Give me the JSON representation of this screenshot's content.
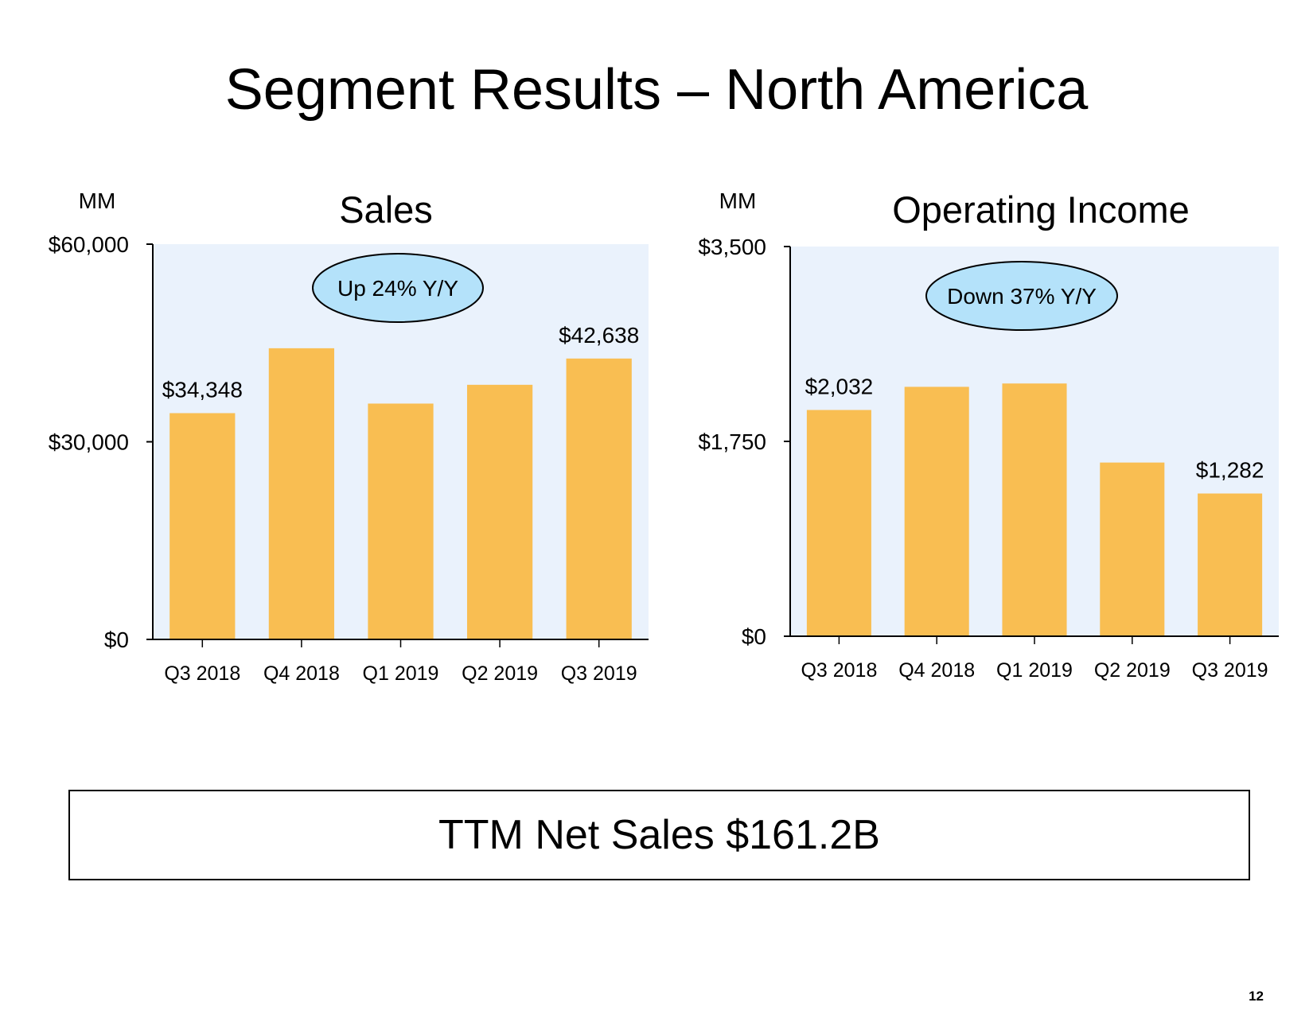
{
  "page": {
    "title": "Segment Results – North America",
    "ttm_text": "TTM Net Sales $161.2B",
    "page_number": "12"
  },
  "colors": {
    "bar": "#f9be52",
    "plot_bg": "#eaf2fc",
    "callout_fill": "#b4e2fa",
    "axis": "#000000"
  },
  "chart_data": [
    {
      "type": "bar",
      "title": "Sales",
      "unit_label": "MM",
      "categories": [
        "Q3 2018",
        "Q4 2018",
        "Q1 2019",
        "Q2 2019",
        "Q3 2019"
      ],
      "values": [
        34348,
        44200,
        35800,
        38650,
        42638
      ],
      "ylim": [
        0,
        60000
      ],
      "yticks": [
        0,
        30000,
        60000
      ],
      "ytick_labels": [
        "$0",
        "$30,000",
        "$60,000"
      ],
      "data_labels": [
        {
          "index": 0,
          "text": "$34,348"
        },
        {
          "index": 4,
          "text": "$42,638"
        }
      ],
      "callout": "Up 24% Y/Y",
      "grid": false
    },
    {
      "type": "bar",
      "title": "Operating Income",
      "unit_label": "MM",
      "categories": [
        "Q3 2018",
        "Q4 2018",
        "Q1 2019",
        "Q2 2019",
        "Q3 2019"
      ],
      "values": [
        2032,
        2240,
        2270,
        1560,
        1282
      ],
      "ylim": [
        0,
        3500
      ],
      "yticks": [
        0,
        1750,
        3500
      ],
      "ytick_labels": [
        "$0",
        "$1,750",
        "$3,500"
      ],
      "data_labels": [
        {
          "index": 0,
          "text": "$2,032"
        },
        {
          "index": 4,
          "text": "$1,282"
        }
      ],
      "callout": "Down 37% Y/Y",
      "grid": false
    }
  ]
}
